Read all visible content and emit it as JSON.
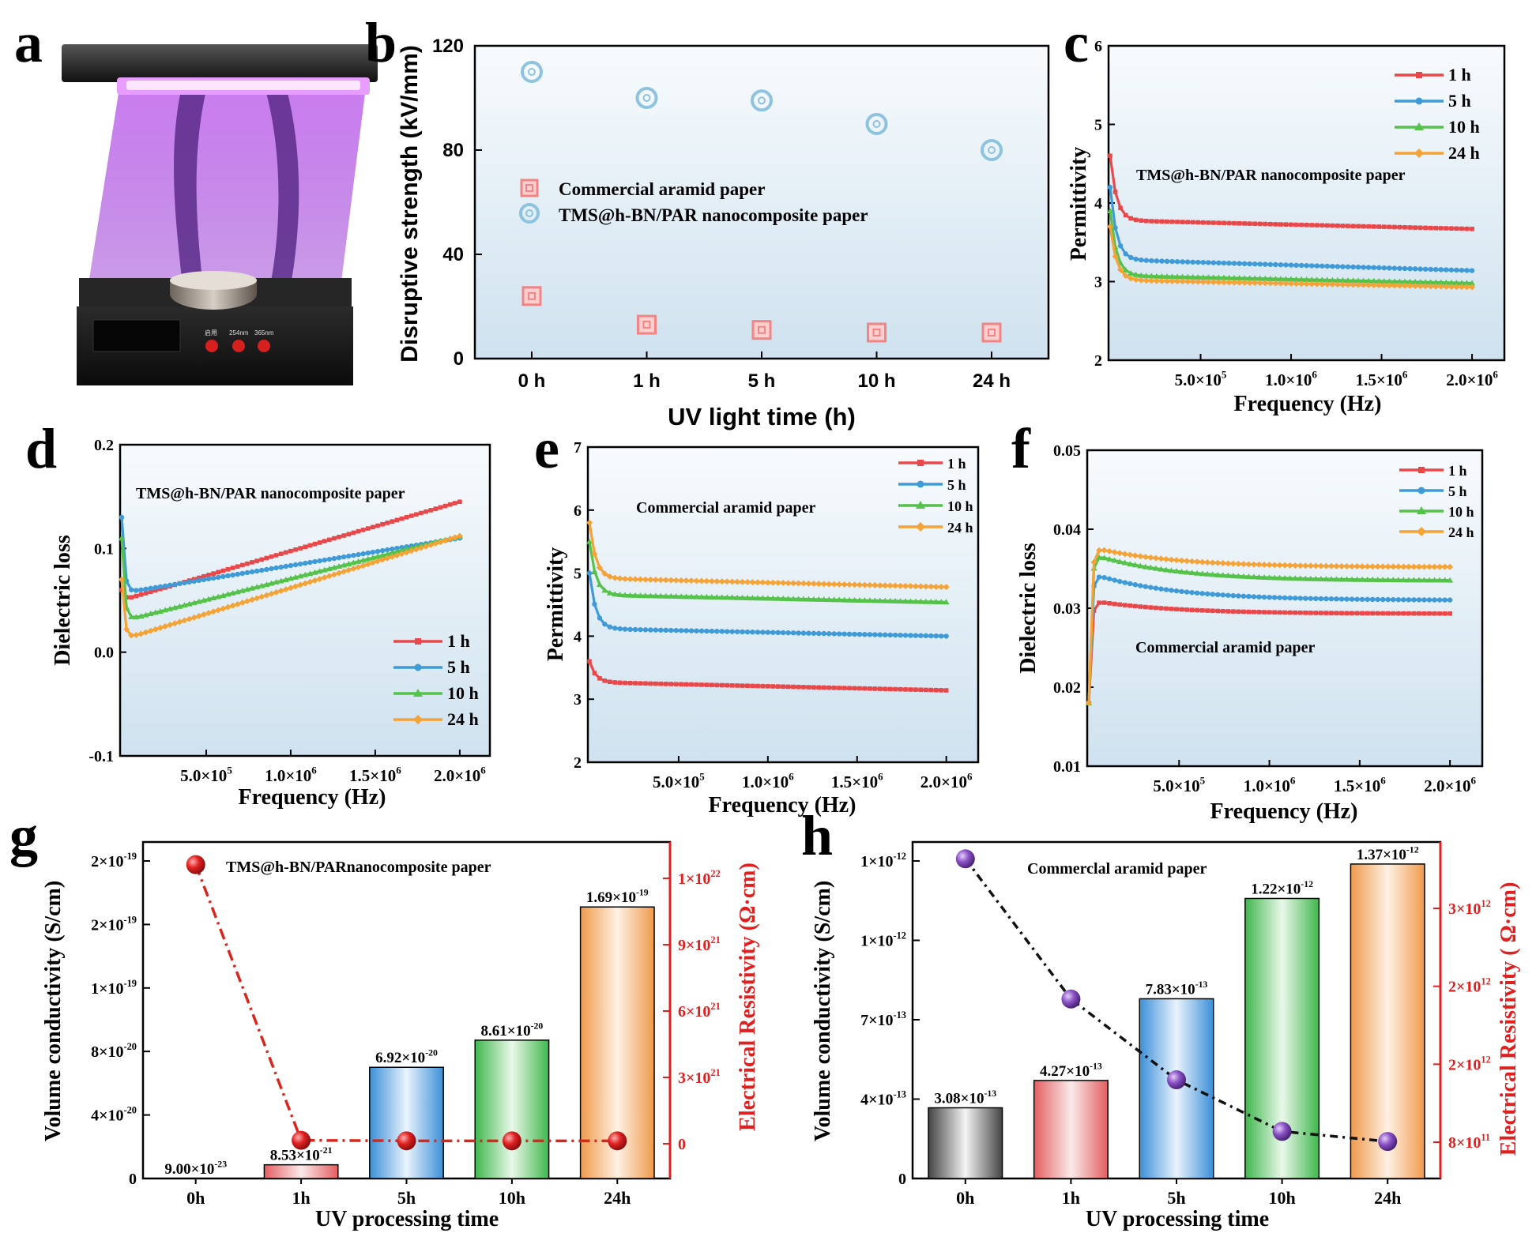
{
  "panel_labels": {
    "a": "a",
    "b": "b",
    "c": "c",
    "d": "d",
    "e": "e",
    "f": "f",
    "g": "g",
    "h": "h"
  },
  "lamp": {
    "button_labels": [
      "启用",
      "254nm",
      "365nm"
    ],
    "colors": {
      "uv_glow": "#b44be6",
      "body": "#1a1a1a"
    }
  },
  "colors": {
    "red": "#e8484a",
    "blue": "#3f9ad8",
    "green": "#55c24a",
    "orange": "#f5a236",
    "bg_top": "#f7fafc",
    "bg_bottom": "#d4e6f1",
    "resist_red": "#d9261c",
    "purple": "#8a55c2",
    "axis_red": "#e01f1f"
  },
  "chart_data": [
    {
      "panel": "b",
      "type": "scatter",
      "xlabel": "UV light time (h)",
      "ylabel": "Disruptive strength (kV/mm)",
      "categories": [
        "0 h",
        "1 h",
        "5 h",
        "10 h",
        "24 h"
      ],
      "ylim": [
        0,
        120
      ],
      "yticks": [
        "0",
        "40",
        "80",
        "120"
      ],
      "series": [
        {
          "name": "Commercial aramid paper",
          "values": [
            24,
            13,
            11,
            10,
            10
          ]
        },
        {
          "name": "TMS@h-BN/PAR nanocomposite paper",
          "values": [
            110,
            100,
            99,
            90,
            80
          ]
        }
      ]
    },
    {
      "panel": "c",
      "type": "line",
      "xlabel": "Frequency (Hz)",
      "ylabel": "Permittivity",
      "annotation": "TMS@h-BN/PAR nanocomposite paper",
      "ylim": [
        2,
        6
      ],
      "yticks": [
        "2",
        "3",
        "4",
        "5",
        "6"
      ],
      "xticks": [
        "5.0×10",
        "1.0×10",
        "1.5×10",
        "2.0×10"
      ],
      "xtick_exps": [
        "5",
        "6",
        "6",
        "6"
      ],
      "series": [
        {
          "name": "1 h",
          "start": 4.6,
          "plateau": 3.78,
          "end": 3.67
        },
        {
          "name": "5 h",
          "start": 4.2,
          "plateau": 3.28,
          "end": 3.14
        },
        {
          "name": "10 h",
          "start": 3.9,
          "plateau": 3.08,
          "end": 2.98
        },
        {
          "name": "24 h",
          "start": 3.7,
          "plateau": 3.02,
          "end": 2.93
        }
      ]
    },
    {
      "panel": "d",
      "type": "line",
      "xlabel": "Frequency (Hz)",
      "ylabel": "Dielectric loss",
      "annotation": "TMS@h-BN/PAR nanocomposite paper",
      "ylim": [
        -0.1,
        0.2
      ],
      "yticks": [
        "-0.1",
        "0.0",
        "0.1",
        "0.2"
      ],
      "xticks": [
        "5.0×10",
        "1.0×10",
        "1.5×10",
        "2.0×10"
      ],
      "xtick_exps": [
        "5",
        "6",
        "6",
        "6"
      ],
      "series": [
        {
          "name": "1 h",
          "start": 0.06,
          "low": 0.05,
          "end": 0.145
        },
        {
          "name": "5 h",
          "start": 0.13,
          "low": 0.057,
          "end": 0.11
        },
        {
          "name": "10 h",
          "start": 0.11,
          "low": 0.03,
          "end": 0.112
        },
        {
          "name": "24 h",
          "start": 0.07,
          "low": 0.012,
          "end": 0.112
        }
      ]
    },
    {
      "panel": "e",
      "type": "line",
      "xlabel": "Frequency (Hz)",
      "ylabel": "Permittivity",
      "annotation": "Commercial aramid paper",
      "ylim": [
        2,
        7
      ],
      "yticks": [
        "2",
        "3",
        "4",
        "5",
        "6",
        "7"
      ],
      "xticks": [
        "5.0×10",
        "1.0×10",
        "1.5×10",
        "2.0×10"
      ],
      "xtick_exps": [
        "5",
        "6",
        "6",
        "6"
      ],
      "series": [
        {
          "name": "1 h",
          "start": 3.6,
          "plateau": 3.27,
          "end": 3.14
        },
        {
          "name": "5 h",
          "start": 5.0,
          "plateau": 4.12,
          "end": 4.0
        },
        {
          "name": "10 h",
          "start": 5.5,
          "plateau": 4.66,
          "end": 4.54
        },
        {
          "name": "24 h",
          "start": 5.8,
          "plateau": 4.92,
          "end": 4.78
        }
      ]
    },
    {
      "panel": "f",
      "type": "line",
      "xlabel": "Frequency (Hz)",
      "ylabel": "Dielectric loss",
      "annotation": "Commercial aramid paper",
      "ylim": [
        0.01,
        0.05
      ],
      "yticks": [
        "0.01",
        "0.02",
        "0.03",
        "0.04",
        "0.05"
      ],
      "xticks": [
        "5.0×10",
        "1.0×10",
        "1.5×10",
        "2.0×10"
      ],
      "xtick_exps": [
        "5",
        "6",
        "6",
        "6"
      ],
      "series": [
        {
          "name": "1 h",
          "start": 0.018,
          "peak": 0.031,
          "end": 0.0293
        },
        {
          "name": "5 h",
          "start": 0.018,
          "peak": 0.0345,
          "end": 0.031
        },
        {
          "name": "10 h",
          "start": 0.018,
          "peak": 0.037,
          "end": 0.0335
        },
        {
          "name": "24 h",
          "start": 0.018,
          "peak": 0.0378,
          "end": 0.0352
        }
      ]
    },
    {
      "panel": "g",
      "type": "bar",
      "annotation": "TMS@h-BN/PARnanocomposite paper",
      "xlabel": "UV processing time",
      "ylabel": "Volume conductivity (S/cm)",
      "ylabel_right": "Electrical Resistivity (Ω·cm)",
      "categories": [
        "0h",
        "1h",
        "5h",
        "10h",
        "24h"
      ],
      "ylim": [
        0,
        2e-19
      ],
      "yticks": [
        {
          "m": "0",
          "e": ""
        },
        {
          "m": "4×10",
          "e": "-20"
        },
        {
          "m": "8×10",
          "e": "-20"
        },
        {
          "m": "1×10",
          "e": "-19"
        },
        {
          "m": "2×10",
          "e": "-19"
        },
        {
          "m": "2×10",
          "e": "-19"
        }
      ],
      "bar_values": [
        9e-23,
        8.53e-21,
        6.92e-20,
        8.61e-20,
        1.69e-19
      ],
      "bar_labels": [
        {
          "m": "9.00×10",
          "e": "-23"
        },
        {
          "m": "8.53×10",
          "e": "-21"
        },
        {
          "m": "6.92×10",
          "e": "-20"
        },
        {
          "m": "8.61×10",
          "e": "-20"
        },
        {
          "m": "1.69×10",
          "e": "-19"
        }
      ],
      "resistivity_values": [
        1.11e+22,
        1.2e+20,
        1e+20,
        1e+20,
        1e+20
      ],
      "y2lim": [
        -1.4e+21,
        1.2e+22
      ],
      "y2ticks": [
        {
          "m": "0",
          "e": ""
        },
        {
          "m": "3×10",
          "e": "21"
        },
        {
          "m": "6×10",
          "e": "21"
        },
        {
          "m": "9×10",
          "e": "21"
        },
        {
          "m": "1×10",
          "e": "22"
        }
      ]
    },
    {
      "panel": "h",
      "type": "bar",
      "annotation": "Commerclal aramid paper",
      "xlabel": "UV processing time",
      "ylabel": "Volume conductivity (S/cm)",
      "ylabel_right": "Electrical Resistivity ( Ω·cm)",
      "categories": [
        "0h",
        "1h",
        "5h",
        "10h",
        "24h"
      ],
      "ylim": [
        0,
        1.4e-12
      ],
      "yticks": [
        {
          "m": "0",
          "e": ""
        },
        {
          "m": "4×10",
          "e": "-13"
        },
        {
          "m": "7×10",
          "e": "-13"
        },
        {
          "m": "1×10",
          "e": "-12"
        },
        {
          "m": "1×10",
          "e": "-12"
        }
      ],
      "bar_values": [
        3.08e-13,
        4.27e-13,
        7.83e-13,
        1.22e-12,
        1.37e-12
      ],
      "bar_labels": [
        {
          "m": "3.08×10",
          "e": "-13"
        },
        {
          "m": "4.27×10",
          "e": "-13"
        },
        {
          "m": "7.83×10",
          "e": "-13"
        },
        {
          "m": "1.22×10",
          "e": "-12"
        },
        {
          "m": "1.37×10",
          "e": "-12"
        }
      ],
      "resistivity_values": [
        3250000000000.0,
        2000000000000.0,
        1280000000000.0,
        820000000000.0,
        730000000000.0
      ],
      "y2lim": [
        400000000000.0,
        3400000000000.0
      ],
      "y2ticks": [
        {
          "m": "8×10",
          "e": "11"
        },
        {
          "m": "2×10",
          "e": "12"
        },
        {
          "m": "2×10",
          "e": "12"
        },
        {
          "m": "3×10",
          "e": "12"
        }
      ]
    }
  ]
}
